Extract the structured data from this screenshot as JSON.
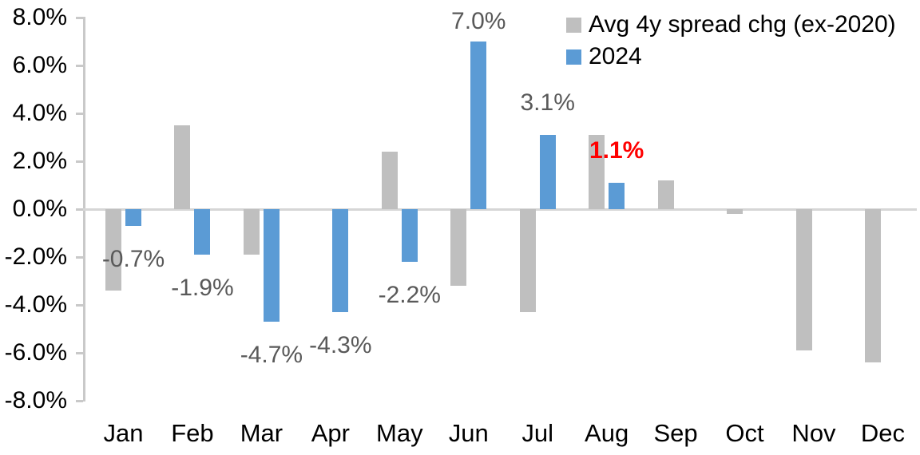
{
  "chart_data": {
    "type": "bar",
    "title": "",
    "xlabel": "",
    "ylabel": "",
    "categories": [
      "Jan",
      "Feb",
      "Mar",
      "Apr",
      "May",
      "Jun",
      "Jul",
      "Aug",
      "Sep",
      "Oct",
      "Nov",
      "Dec"
    ],
    "series": [
      {
        "name": "Avg 4y spread chg (ex-2020)",
        "key": "avg",
        "color": "#bfbfbf",
        "values": [
          -3.4,
          3.5,
          -1.9,
          0.0,
          2.4,
          -3.2,
          -4.3,
          3.1,
          1.2,
          -0.2,
          -5.9,
          -6.4
        ]
      },
      {
        "name": "2024",
        "key": "y2024",
        "color": "#5b9bd5",
        "values": [
          -0.7,
          -1.9,
          -4.7,
          -4.3,
          -2.2,
          7.0,
          3.1,
          1.1,
          null,
          null,
          null,
          null
        ]
      }
    ],
    "data_labels": [
      {
        "month": "Jan",
        "text": "-0.7%",
        "color": "#595959",
        "bold": false
      },
      {
        "month": "Feb",
        "text": "-1.9%",
        "color": "#595959",
        "bold": false
      },
      {
        "month": "Mar",
        "text": "-4.7%",
        "color": "#595959",
        "bold": false
      },
      {
        "month": "Apr",
        "text": "-4.3%",
        "color": "#595959",
        "bold": false
      },
      {
        "month": "May",
        "text": "-2.2%",
        "color": "#595959",
        "bold": false
      },
      {
        "month": "Jun",
        "text": "7.0%",
        "color": "#595959",
        "bold": false
      },
      {
        "month": "Jul",
        "text": "3.1%",
        "color": "#595959",
        "bold": false
      },
      {
        "month": "Aug",
        "text": "1.1%",
        "color": "#ff0000",
        "bold": true
      }
    ],
    "y_axis": {
      "min": -8,
      "max": 8,
      "step": 2,
      "tick_labels": [
        "8.0%",
        "6.0%",
        "4.0%",
        "2.0%",
        "0.0%",
        "-2.0%",
        "-4.0%",
        "-6.0%",
        "-8.0%"
      ],
      "format": "percent"
    },
    "legend_position": "top-right",
    "grid": false
  }
}
